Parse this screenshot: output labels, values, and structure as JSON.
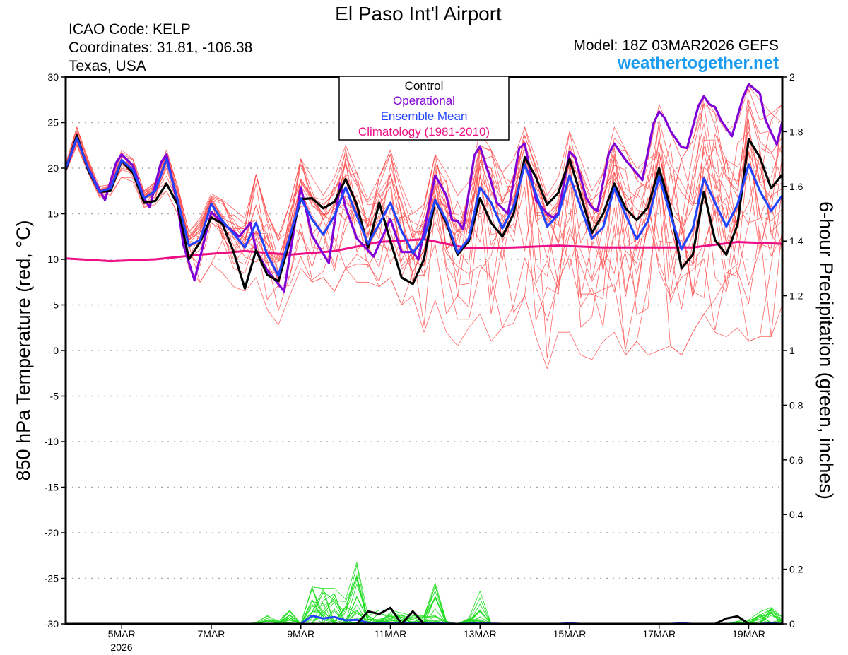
{
  "header": {
    "title": "El Paso Int'l Airport",
    "icao": "ICAO Code: KELP",
    "coordinates": "Coordinates: 31.81, -106.38",
    "location": "Texas, USA",
    "model": "Model: 18Z 03MAR2026 GEFS",
    "site": "weathertogether.net"
  },
  "chart_data": {
    "type": "line",
    "title": "El Paso Int'l Airport",
    "ylabel": "850 hPa Temperature (red, °C)",
    "y2label": "6-hour Precipitation (green, inches)",
    "ylim": [
      -30,
      30
    ],
    "y2lim": [
      0,
      2
    ],
    "yticks": [
      "30",
      "25",
      "20",
      "15",
      "10",
      "5",
      "0",
      "-5",
      "-10",
      "-15",
      "-20",
      "-25",
      "-30"
    ],
    "y2ticks": [
      "2",
      "1.8",
      "1.6",
      "1.4",
      "1.2",
      "1",
      "0.8",
      "0.6",
      "0.4",
      "0.2",
      "0"
    ],
    "xticks": [
      {
        "label": "5MAR",
        "time": "2026-03-05T00"
      },
      {
        "label": "7MAR",
        "time": "2026-03-07T00"
      },
      {
        "label": "9MAR",
        "time": "2026-03-09T00"
      },
      {
        "label": "11MAR",
        "time": "2026-03-11T00"
      },
      {
        "label": "13MAR",
        "time": "2026-03-13T00"
      },
      {
        "label": "15MAR",
        "time": "2026-03-15T00"
      },
      {
        "label": "17MAR",
        "time": "2026-03-17T00"
      },
      {
        "label": "19MAR",
        "time": "2026-03-19T00"
      }
    ],
    "xtick_year": "2026",
    "grid": "horizontal dotted",
    "legend_position": "top-center",
    "legend": [
      {
        "label": "Control",
        "color": "#000000"
      },
      {
        "label": "Operational",
        "color": "#8000d8"
      },
      {
        "label": "Ensemble Mean",
        "color": "#2244ff"
      },
      {
        "label": "Climatology (1981-2010)",
        "color": "#ee0f86"
      }
    ],
    "colors": {
      "members_temp": "#ff4a4a",
      "members_precip": "#22dd22"
    },
    "times": [
      "2026-03-03T18",
      "2026-03-04T00",
      "2026-03-04T06",
      "2026-03-04T12",
      "2026-03-04T18",
      "2026-03-05T00",
      "2026-03-05T06",
      "2026-03-05T12",
      "2026-03-05T18",
      "2026-03-06T00",
      "2026-03-06T06",
      "2026-03-06T12",
      "2026-03-06T18",
      "2026-03-07T00",
      "2026-03-07T06",
      "2026-03-07T12",
      "2026-03-07T18",
      "2026-03-08T00",
      "2026-03-08T06",
      "2026-03-08T12",
      "2026-03-08T18",
      "2026-03-09T00",
      "2026-03-09T06",
      "2026-03-09T12",
      "2026-03-09T18",
      "2026-03-10T00",
      "2026-03-10T06",
      "2026-03-10T12",
      "2026-03-10T18",
      "2026-03-11T00",
      "2026-03-11T06",
      "2026-03-11T12",
      "2026-03-11T18",
      "2026-03-12T00",
      "2026-03-12T06",
      "2026-03-12T12",
      "2026-03-12T18",
      "2026-03-13T00",
      "2026-03-13T06",
      "2026-03-13T12",
      "2026-03-13T18",
      "2026-03-14T00",
      "2026-03-14T06",
      "2026-03-14T12",
      "2026-03-14T18",
      "2026-03-15T00",
      "2026-03-15T06",
      "2026-03-15T12",
      "2026-03-15T18",
      "2026-03-16T00",
      "2026-03-16T06",
      "2026-03-16T12",
      "2026-03-16T18",
      "2026-03-17T00",
      "2026-03-17T06",
      "2026-03-17T12",
      "2026-03-17T18",
      "2026-03-18T00",
      "2026-03-18T06",
      "2026-03-18T12",
      "2026-03-18T18",
      "2026-03-19T00",
      "2026-03-19T06",
      "2026-03-19T12",
      "2026-03-19T18"
    ],
    "series": {
      "control": {
        "temp": [
          19.8,
          23.6,
          19.8,
          17.4,
          17.5,
          20.8,
          19.5,
          16.2,
          16.4,
          18.3,
          16,
          10,
          11.9,
          14.6,
          13.9,
          10.8,
          6.8,
          11,
          8.3,
          7.6,
          12,
          16.6,
          16.7,
          15.6,
          16.3,
          18.8,
          16,
          11.3,
          16.2,
          12,
          8,
          7.3,
          10,
          16.5,
          14,
          10.5,
          12,
          16.7,
          14,
          12.5,
          15,
          21.2,
          19,
          16,
          17.3,
          21,
          17,
          12.9,
          15,
          18.3,
          15.6,
          14.3,
          15.7,
          20,
          15.7,
          9,
          10.5,
          17.4,
          12.1,
          10.5,
          13.8,
          23.2,
          21.2,
          17.8,
          19.3
        ],
        "precip": [
          0,
          0,
          0,
          0,
          0,
          0,
          0,
          0,
          0,
          0,
          0,
          0,
          0,
          0,
          0,
          0,
          0,
          0,
          0,
          0,
          0,
          0,
          0,
          0,
          0,
          0,
          0,
          0.046,
          0.036,
          0.059,
          0,
          0.046,
          0,
          0,
          0,
          0,
          0,
          0,
          0,
          0,
          0,
          0,
          0,
          0,
          0,
          0,
          0,
          0,
          0,
          0,
          0,
          0,
          0,
          0,
          0,
          0,
          0,
          0,
          0,
          0.02,
          0.028,
          0,
          0,
          0,
          0
        ]
      },
      "ensemble_mean": {
        "temp": [
          20,
          23.3,
          20,
          17.4,
          17.8,
          20.9,
          19.8,
          16.7,
          17.5,
          21,
          16.5,
          11.5,
          12.1,
          16.1,
          14.2,
          12.8,
          11.3,
          14,
          10.5,
          8.2,
          12.5,
          16.7,
          14.4,
          12.7,
          14.8,
          17.9,
          14.8,
          11.7,
          13.9,
          16.2,
          13.1,
          10.7,
          12.3,
          16.5,
          14.3,
          10.7,
          12.3,
          17.9,
          16.2,
          13.4,
          15.8,
          20.4,
          17.2,
          13.6,
          14.9,
          19.2,
          15.7,
          12.3,
          13.5,
          17.8,
          14.9,
          12.2,
          14.2,
          19.1,
          14.9,
          11.1,
          13.4,
          18.9,
          16.2,
          13.6,
          16,
          20.4,
          17.5,
          15.3,
          17
        ],
        "precip": [
          0,
          0,
          0,
          0,
          0,
          0,
          0,
          0,
          0,
          0,
          0,
          0,
          0,
          0,
          0,
          0,
          0,
          0,
          0,
          0,
          0,
          0,
          0.03,
          0.02,
          0.025,
          0.013,
          0.015,
          0.004,
          0.003,
          0.002,
          0.002,
          0.001,
          0.003,
          0.002,
          0.001,
          0,
          0.001,
          0.004,
          0.001,
          0,
          0,
          0,
          0,
          0,
          0,
          0.002,
          0,
          0,
          0,
          0,
          0,
          0,
          0,
          0,
          0,
          0.002,
          0,
          0,
          0,
          0,
          0,
          0,
          0,
          0.002,
          0
        ]
      },
      "operational": {
        "points": [
          [
            "2026-03-03T18",
            19.8
          ],
          [
            "2026-03-04T00",
            23.3
          ],
          [
            "2026-03-04T06",
            20
          ],
          [
            "2026-03-04T15",
            16.5
          ],
          [
            "2026-03-04T21",
            20.6
          ],
          [
            "2026-03-05T00",
            21.5
          ],
          [
            "2026-03-05T06",
            20.3
          ],
          [
            "2026-03-05T12",
            16.7
          ],
          [
            "2026-03-05T15",
            15.7
          ],
          [
            "2026-03-05T21",
            20.6
          ],
          [
            "2026-03-06T00",
            21.5
          ],
          [
            "2026-03-06T06",
            16
          ],
          [
            "2026-03-06T09",
            11.6
          ],
          [
            "2026-03-06T15",
            7.7
          ],
          [
            "2026-03-07T00",
            15.2
          ],
          [
            "2026-03-07T06",
            14
          ],
          [
            "2026-03-07T15",
            12.5
          ],
          [
            "2026-03-07T21",
            14
          ],
          [
            "2026-03-08T00",
            11
          ],
          [
            "2026-03-08T06",
            8.8
          ],
          [
            "2026-03-08T15",
            6.5
          ],
          [
            "2026-03-09T00",
            17.9
          ],
          [
            "2026-03-09T06",
            12.6
          ],
          [
            "2026-03-09T15",
            9.6
          ],
          [
            "2026-03-09T21",
            18.3
          ],
          [
            "2026-03-10T00",
            15.7
          ],
          [
            "2026-03-10T06",
            12.3
          ],
          [
            "2026-03-10T15",
            10.3
          ],
          [
            "2026-03-11T00",
            14.4
          ],
          [
            "2026-03-11T06",
            10.8
          ],
          [
            "2026-03-11T12",
            10.8
          ],
          [
            "2026-03-11T15",
            10
          ],
          [
            "2026-03-12T00",
            19.2
          ],
          [
            "2026-03-12T06",
            17
          ],
          [
            "2026-03-12T09",
            14.3
          ],
          [
            "2026-03-12T12",
            14.2
          ],
          [
            "2026-03-12T15",
            13.3
          ],
          [
            "2026-03-12T21",
            21.4
          ],
          [
            "2026-03-13T00",
            22.4
          ],
          [
            "2026-03-13T06",
            18.5
          ],
          [
            "2026-03-13T09",
            16.2
          ],
          [
            "2026-03-13T15",
            15
          ],
          [
            "2026-03-13T21",
            22.2
          ],
          [
            "2026-03-14T00",
            22.7
          ],
          [
            "2026-03-14T06",
            16.5
          ],
          [
            "2026-03-14T12",
            15
          ],
          [
            "2026-03-14T15",
            14.6
          ],
          [
            "2026-03-14T18",
            15
          ],
          [
            "2026-03-15T00",
            21.8
          ],
          [
            "2026-03-15T03",
            21.2
          ],
          [
            "2026-03-15T09",
            16.7
          ],
          [
            "2026-03-15T12",
            15.7
          ],
          [
            "2026-03-15T15",
            15.3
          ],
          [
            "2026-03-15T21",
            21.6
          ],
          [
            "2026-03-16T00",
            22.7
          ],
          [
            "2026-03-16T06",
            20.9
          ],
          [
            "2026-03-16T15",
            18.7
          ],
          [
            "2026-03-16T21",
            24.9
          ],
          [
            "2026-03-17T00",
            26.2
          ],
          [
            "2026-03-17T03",
            25.5
          ],
          [
            "2026-03-17T06",
            24.1
          ],
          [
            "2026-03-17T09",
            23.2
          ],
          [
            "2026-03-17T12",
            22.3
          ],
          [
            "2026-03-17T15",
            22.2
          ],
          [
            "2026-03-17T21",
            26.8
          ],
          [
            "2026-03-18T00",
            27.9
          ],
          [
            "2026-03-18T03",
            27
          ],
          [
            "2026-03-18T06",
            26.7
          ],
          [
            "2026-03-18T09",
            25.3
          ],
          [
            "2026-03-18T15",
            23.5
          ],
          [
            "2026-03-18T21",
            27.8
          ],
          [
            "2026-03-19T00",
            29.2
          ],
          [
            "2026-03-19T06",
            28.2
          ],
          [
            "2026-03-19T09",
            25.3
          ],
          [
            "2026-03-19T15",
            22.6
          ],
          [
            "2026-03-19T18",
            25.1
          ]
        ]
      },
      "climatology": {
        "times": [
          "2026-03-03T18",
          "2026-03-04T18",
          "2026-03-05T18",
          "2026-03-06T18",
          "2026-03-07T18",
          "2026-03-08T18",
          "2026-03-09T18",
          "2026-03-10T18",
          "2026-03-11T18",
          "2026-03-12T18",
          "2026-03-13T18",
          "2026-03-14T18",
          "2026-03-15T18",
          "2026-03-16T18",
          "2026-03-17T18",
          "2026-03-18T18",
          "2026-03-19T18"
        ],
        "temp": [
          10.1,
          9.8,
          10,
          10.5,
          10.9,
          10.5,
          10.9,
          11.9,
          12.2,
          11.2,
          11.3,
          11.5,
          11.3,
          11.3,
          11.3,
          11.9,
          11.7
        ]
      },
      "ensemble_members": {
        "count": 20,
        "temp_max": [
          20.5,
          24.5,
          21,
          18,
          18.2,
          22,
          21,
          17.5,
          18.5,
          22,
          18,
          13,
          14.5,
          17.2,
          16.5,
          15.5,
          14.5,
          19.3,
          15,
          12.5,
          16,
          21,
          19,
          17,
          19,
          22.5,
          19.5,
          16.5,
          19,
          22,
          18,
          15,
          16,
          21.5,
          19.5,
          17,
          18.5,
          24,
          22,
          19.5,
          21,
          24.5,
          21,
          17,
          19,
          24,
          21,
          17.5,
          19.5,
          24.5,
          22,
          20,
          21,
          27,
          24,
          21,
          23,
          28,
          26,
          24,
          25,
          29,
          27.5,
          26,
          27
        ],
        "temp_min": [
          19.5,
          22.5,
          19.5,
          16.8,
          17,
          19,
          18.5,
          15.7,
          16,
          17.5,
          15,
          9,
          7.5,
          9.5,
          8.5,
          7,
          6.5,
          8,
          4.5,
          2.8,
          6,
          9,
          7.5,
          8,
          6.5,
          9,
          7.5,
          7.5,
          7,
          8,
          5,
          6,
          2,
          5.5,
          2,
          0.5,
          2.5,
          4,
          1,
          2.5,
          3,
          6,
          1.5,
          -2,
          2,
          2,
          -0.5,
          -1,
          1,
          2,
          -0.5,
          1,
          -0.5,
          0,
          0.5,
          -0.5,
          2,
          4,
          2,
          1.5,
          2.5,
          1,
          1.5,
          1.5,
          5
        ],
        "precip_max": [
          0,
          0,
          0,
          0,
          0,
          0,
          0,
          0,
          0,
          0,
          0,
          0,
          0,
          0,
          0,
          0,
          0,
          0.005,
          0.03,
          0.01,
          0.05,
          0,
          0.135,
          0.13,
          0.13,
          0.09,
          0.225,
          0.03,
          0.05,
          0.05,
          0.04,
          0.03,
          0.03,
          0.15,
          0.01,
          0,
          0.02,
          0.12,
          0,
          0,
          0,
          0,
          0,
          0,
          0,
          0,
          0,
          0,
          0,
          0,
          0,
          0,
          0,
          0,
          0,
          0,
          0,
          0,
          0,
          0,
          0.01,
          0.015,
          0.044,
          0.06,
          0.025
        ]
      }
    }
  }
}
